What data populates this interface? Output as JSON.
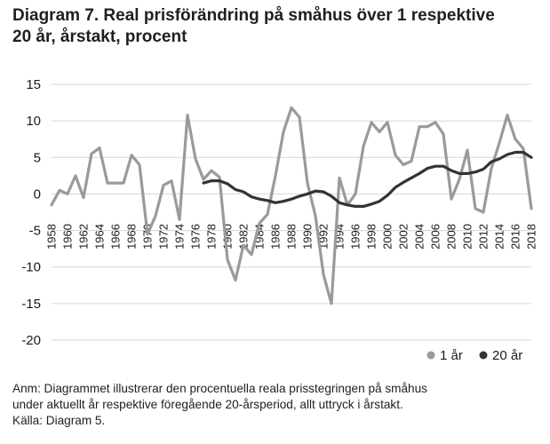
{
  "title_line1": "Diagram 7. Real prisförändring på småhus över 1 respektive",
  "title_line2": "20 år, årstakt, procent",
  "note_line1": "Anm: Diagrammet illustrerar den procentuella reala prisstegringen på småhus",
  "note_line2": "under aktuellt år respektive föregående 20-årsperiod, allt uttryck i årstakt.",
  "note_line3": "Källa: Diagram 5.",
  "colors": {
    "series_1": "#9a9a9a",
    "series_20": "#333333",
    "grid": "#d6d6d6"
  },
  "chart_data": {
    "type": "line",
    "ylim": [
      -20,
      15
    ],
    "yticks": [
      15,
      10,
      5,
      0,
      -5,
      -10,
      -15,
      -20
    ],
    "xlim": [
      1958,
      2018
    ],
    "xticks": [
      1958,
      1960,
      1962,
      1964,
      1966,
      1968,
      1970,
      1972,
      1974,
      1976,
      1978,
      1980,
      1982,
      1984,
      1986,
      1988,
      1990,
      1992,
      1994,
      1996,
      1998,
      2000,
      2002,
      2004,
      2006,
      2008,
      2010,
      2012,
      2014,
      2016,
      2018
    ],
    "legend_position": "bottom-right",
    "grid": true,
    "series": [
      {
        "name": "1 år",
        "x": [
          1958,
          1959,
          1960,
          1961,
          1962,
          1963,
          1964,
          1965,
          1966,
          1967,
          1968,
          1969,
          1970,
          1971,
          1972,
          1973,
          1974,
          1975,
          1976,
          1977,
          1978,
          1979,
          1980,
          1981,
          1982,
          1983,
          1984,
          1985,
          1986,
          1987,
          1988,
          1989,
          1990,
          1991,
          1992,
          1993,
          1994,
          1995,
          1996,
          1997,
          1998,
          1999,
          2000,
          2001,
          2002,
          2003,
          2004,
          2005,
          2006,
          2007,
          2008,
          2009,
          2010,
          2011,
          2012,
          2013,
          2014,
          2015,
          2016,
          2017,
          2018
        ],
        "values": [
          -1.5,
          0.5,
          0,
          2.5,
          -0.5,
          5.5,
          6.3,
          1.5,
          1.5,
          1.5,
          5.3,
          4,
          -5.5,
          -3,
          1.2,
          1.8,
          -3.5,
          10.8,
          4.8,
          2,
          3.2,
          2.3,
          -9,
          -11.8,
          -7,
          -8.3,
          -4,
          -2.8,
          2.5,
          8.5,
          11.8,
          10.5,
          1.5,
          -3,
          -11,
          -15,
          2.2,
          -1.5,
          0,
          6.5,
          9.8,
          8.5,
          9.8,
          5.3,
          4,
          4.5,
          9.2,
          9.2,
          9.8,
          8.2,
          -0.7,
          2,
          6,
          -2,
          -2.5,
          3.5,
          7,
          10.8,
          7.5,
          6.2,
          -2
        ]
      },
      {
        "name": "20 år",
        "x": [
          1977,
          1978,
          1979,
          1980,
          1981,
          1982,
          1983,
          1984,
          1985,
          1986,
          1987,
          1988,
          1989,
          1990,
          1991,
          1992,
          1993,
          1994,
          1995,
          1996,
          1997,
          1998,
          1999,
          2000,
          2001,
          2002,
          2003,
          2004,
          2005,
          2006,
          2007,
          2008,
          2009,
          2010,
          2011,
          2012,
          2013,
          2014,
          2015,
          2016,
          2017,
          2018
        ],
        "values": [
          1.5,
          1.8,
          1.8,
          1.4,
          0.6,
          0.3,
          -0.4,
          -0.7,
          -0.9,
          -1.2,
          -1,
          -0.7,
          -0.3,
          0,
          0.4,
          0.3,
          -0.3,
          -1.2,
          -1.5,
          -1.7,
          -1.7,
          -1.4,
          -1,
          -0.2,
          0.9,
          1.6,
          2.2,
          2.8,
          3.5,
          3.8,
          3.8,
          3.2,
          2.8,
          2.8,
          3,
          3.4,
          4.4,
          4.8,
          5.4,
          5.7,
          5.7,
          5
        ]
      }
    ]
  }
}
